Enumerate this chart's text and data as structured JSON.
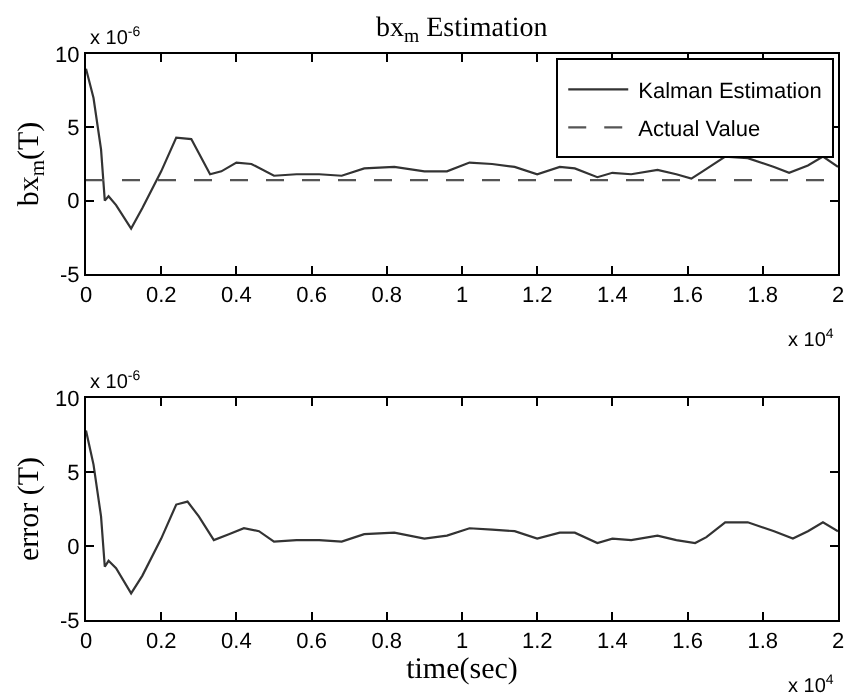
{
  "chart_data": [
    {
      "type": "line",
      "title": "bx$_{m}$ Estimation",
      "ylabel": "bx$_{m}$(T)",
      "xlim": [
        0,
        2
      ],
      "xticks": [
        0,
        0.2,
        0.4,
        0.6,
        0.8,
        1,
        1.2,
        1.4,
        1.6,
        1.8,
        2
      ],
      "ylim": [
        -5,
        10
      ],
      "yticks": [
        -5,
        0,
        5,
        10
      ],
      "legend": "top right",
      "annotations": [
        "x 10$^{-6}$",
        "x 10$^{4}$"
      ],
      "series": [
        {
          "name": "Kalman Estimation",
          "color": "#333333",
          "line_style": "solid",
          "x": [
            0,
            0.02,
            0.04,
            0.05,
            0.06,
            0.08,
            0.12,
            0.15,
            0.2,
            0.24,
            0.28,
            0.33,
            0.36,
            0.4,
            0.44,
            0.5,
            0.56,
            0.62,
            0.68,
            0.74,
            0.82,
            0.9,
            0.96,
            1.02,
            1.08,
            1.14,
            1.2,
            1.26,
            1.3,
            1.36,
            1.4,
            1.45,
            1.52,
            1.57,
            1.61,
            1.64,
            1.7,
            1.76,
            1.83,
            1.87,
            1.92,
            1.96,
            2
          ],
          "values": [
            9,
            7,
            3.5,
            0,
            0.3,
            -0.3,
            -1.9,
            -0.5,
            2,
            4.3,
            4.2,
            1.8,
            2,
            2.6,
            2.5,
            1.7,
            1.8,
            1.8,
            1.7,
            2.2,
            2.3,
            2,
            2,
            2.6,
            2.5,
            2.3,
            1.8,
            2.3,
            2.2,
            1.6,
            1.9,
            1.8,
            2.1,
            1.8,
            1.5,
            2,
            3,
            2.9,
            2.3,
            1.9,
            2.4,
            3,
            2.3
          ]
        },
        {
          "name": "Actual Value",
          "color": "#555555",
          "line_style": "dashed",
          "x": [
            0,
            2
          ],
          "values": [
            1.4,
            1.4
          ]
        }
      ]
    },
    {
      "type": "line",
      "xlabel": "time(sec)",
      "ylabel": "error (T)",
      "xlim": [
        0,
        2
      ],
      "xticks": [
        0,
        0.2,
        0.4,
        0.6,
        0.8,
        1,
        1.2,
        1.4,
        1.6,
        1.8,
        2
      ],
      "ylim": [
        -5,
        10
      ],
      "yticks": [
        -5,
        0,
        5,
        10
      ],
      "annotations": [
        "x 10$^{-6}$",
        "x 10$^{4}$"
      ],
      "series": [
        {
          "color": "#333333",
          "line_style": "solid",
          "x": [
            0,
            0.02,
            0.04,
            0.05,
            0.06,
            0.08,
            0.12,
            0.15,
            0.2,
            0.24,
            0.27,
            0.3,
            0.34,
            0.38,
            0.42,
            0.46,
            0.5,
            0.56,
            0.62,
            0.68,
            0.74,
            0.82,
            0.9,
            0.96,
            1.02,
            1.08,
            1.14,
            1.2,
            1.26,
            1.3,
            1.36,
            1.4,
            1.45,
            1.52,
            1.57,
            1.62,
            1.65,
            1.7,
            1.76,
            1.83,
            1.88,
            1.92,
            1.96,
            2
          ],
          "values": [
            7.8,
            5.5,
            2,
            -1.4,
            -1,
            -1.5,
            -3.2,
            -2,
            0.5,
            2.8,
            3,
            2,
            0.4,
            0.8,
            1.2,
            1,
            0.3,
            0.4,
            0.4,
            0.3,
            0.8,
            0.9,
            0.5,
            0.7,
            1.2,
            1.1,
            1,
            0.5,
            0.9,
            0.9,
            0.2,
            0.5,
            0.4,
            0.7,
            0.4,
            0.2,
            0.6,
            1.6,
            1.6,
            1,
            0.5,
            1,
            1.6,
            1
          ]
        }
      ]
    }
  ]
}
